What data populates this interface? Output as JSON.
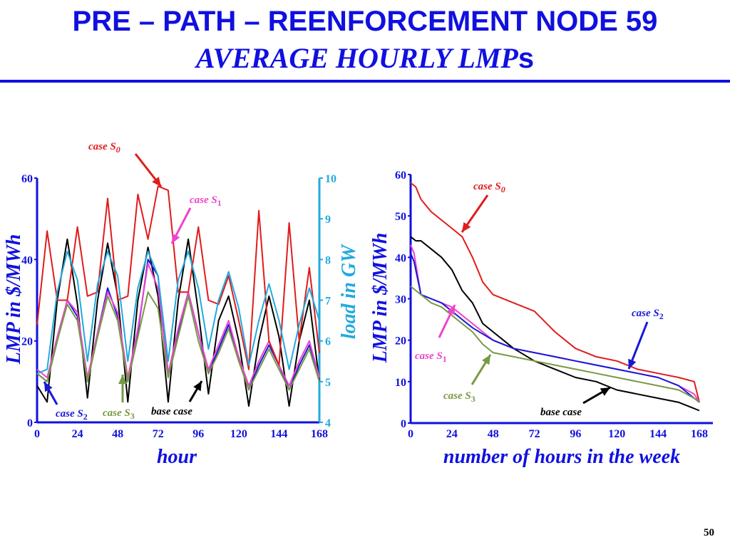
{
  "slide": {
    "title_line1": "PRE – PATH – REENFORCEMENT NODE 59",
    "title_line2_main": "AVERAGE HOURLY LMP",
    "title_line2_suffix": "s",
    "page_number": "50"
  },
  "colors": {
    "title": "#1010e0",
    "s0": "#e01c1c",
    "s1": "#ee44cc",
    "s2": "#1818d8",
    "s3": "#779944",
    "base": "#000000",
    "load": "#22aadd",
    "axis": "#1010e0"
  },
  "chart_data": [
    {
      "type": "line",
      "title": "",
      "xlabel": "hour",
      "ylabel": "LMP in $/MWh",
      "y2label": "load in GW",
      "xlim": [
        0,
        168
      ],
      "ylim": [
        0,
        60
      ],
      "y2lim": [
        4,
        10
      ],
      "xticks": [
        "0",
        "24",
        "48",
        "72",
        "96",
        "120",
        "144",
        "168"
      ],
      "yticks": [
        "0",
        "20",
        "40",
        "60"
      ],
      "y2ticks": [
        "4",
        "5",
        "6",
        "7",
        "8",
        "9",
        "10"
      ],
      "series": [
        {
          "name": "base case",
          "color_key": "base",
          "x": [
            0,
            6,
            12,
            18,
            24,
            30,
            36,
            42,
            48,
            54,
            60,
            66,
            72,
            78,
            84,
            90,
            96,
            102,
            108,
            114,
            120,
            126,
            132,
            138,
            144,
            150,
            156,
            162,
            168
          ],
          "values": [
            9,
            5,
            30,
            45,
            29,
            6,
            30,
            44,
            31,
            5,
            30,
            43,
            31,
            5,
            30,
            45,
            27,
            7,
            25,
            31,
            20,
            4,
            20,
            31,
            21,
            4,
            20,
            30,
            10
          ]
        },
        {
          "name": "case S2",
          "color_key": "s2",
          "x": [
            0,
            6,
            12,
            18,
            24,
            30,
            36,
            42,
            48,
            54,
            60,
            66,
            72,
            78,
            84,
            90,
            96,
            102,
            108,
            114,
            120,
            126,
            132,
            138,
            144,
            150,
            156,
            162,
            168
          ],
          "values": [
            12,
            10,
            20,
            30,
            26,
            10,
            22,
            33,
            26,
            10,
            22,
            40,
            36,
            12,
            22,
            32,
            22,
            12,
            18,
            24,
            16,
            8,
            14,
            19,
            14,
            8,
            14,
            19,
            11
          ]
        },
        {
          "name": "case S1",
          "color_key": "s1",
          "x": [
            0,
            6,
            12,
            18,
            24,
            30,
            36,
            42,
            48,
            54,
            60,
            66,
            72,
            78,
            84,
            90,
            96,
            102,
            108,
            114,
            120,
            126,
            132,
            138,
            144,
            150,
            156,
            162,
            168
          ],
          "values": [
            13,
            11,
            21,
            30,
            27,
            11,
            22,
            32,
            27,
            11,
            23,
            39,
            33,
            12,
            23,
            32,
            22,
            13,
            19,
            25,
            16,
            9,
            15,
            20,
            14,
            9,
            15,
            20,
            11
          ]
        },
        {
          "name": "case S3",
          "color_key": "s3",
          "x": [
            0,
            6,
            12,
            18,
            24,
            30,
            36,
            42,
            48,
            54,
            60,
            66,
            72,
            78,
            84,
            90,
            96,
            102,
            108,
            114,
            120,
            126,
            132,
            138,
            144,
            150,
            156,
            162,
            168
          ],
          "values": [
            12,
            10,
            20,
            29,
            25,
            10,
            21,
            31,
            25,
            10,
            21,
            32,
            28,
            11,
            21,
            31,
            20,
            12,
            17,
            23,
            15,
            8,
            13,
            18,
            13,
            8,
            13,
            18,
            10
          ]
        },
        {
          "name": "case S0",
          "color_key": "s0",
          "x": [
            0,
            6,
            12,
            18,
            24,
            30,
            36,
            42,
            48,
            54,
            60,
            66,
            72,
            78,
            84,
            90,
            96,
            102,
            108,
            114,
            120,
            126,
            132,
            138,
            144,
            150,
            156,
            162,
            168
          ],
          "values": [
            24,
            47,
            30,
            30,
            48,
            31,
            32,
            55,
            30,
            31,
            56,
            45,
            58,
            57,
            32,
            32,
            48,
            30,
            29,
            36,
            25,
            13,
            52,
            20,
            14,
            49,
            20,
            38,
            17
          ]
        },
        {
          "name": "load",
          "color_key": "load",
          "axis": "right",
          "x": [
            0,
            6,
            12,
            18,
            24,
            30,
            36,
            42,
            48,
            54,
            60,
            66,
            72,
            78,
            84,
            90,
            96,
            102,
            108,
            114,
            120,
            126,
            132,
            138,
            144,
            150,
            156,
            162,
            168
          ],
          "values": [
            5.2,
            5.3,
            7.2,
            8.2,
            7.5,
            5.5,
            7.4,
            8.2,
            7.6,
            5.5,
            7.3,
            8.2,
            7.6,
            5.5,
            7.5,
            8.2,
            7.3,
            5.8,
            7.0,
            7.7,
            6.8,
            5.4,
            6.5,
            7.4,
            6.5,
            5.3,
            6.4,
            7.3,
            6.5
          ]
        }
      ],
      "annotations": [
        {
          "text": "case S",
          "sub": "0",
          "color_key": "s0",
          "sub_italic": true
        },
        {
          "text": "case S",
          "sub": "1",
          "color_key": "s1",
          "sub_italic": false
        },
        {
          "text": "case S",
          "sub": "2",
          "color_key": "s2",
          "sub_italic": false
        },
        {
          "text": "case S",
          "sub": "3",
          "color_key": "s3",
          "sub_italic": false
        },
        {
          "text": "base case",
          "sub": "",
          "color_key": "base",
          "sub_italic": false
        }
      ]
    },
    {
      "type": "line",
      "title": "",
      "xlabel": "number of hours in the week",
      "ylabel": "LMP in $/MWh",
      "xlim": [
        0,
        168
      ],
      "ylim": [
        0,
        60
      ],
      "xticks": [
        "0",
        "24",
        "48",
        "72",
        "96",
        "120",
        "144",
        "168"
      ],
      "yticks": [
        "0",
        "10",
        "20",
        "30",
        "40",
        "50",
        "60"
      ],
      "series": [
        {
          "name": "case S0",
          "color_key": "s0",
          "x": [
            0,
            3,
            6,
            12,
            18,
            24,
            30,
            36,
            42,
            48,
            60,
            72,
            84,
            96,
            108,
            120,
            132,
            144,
            156,
            165,
            168
          ],
          "values": [
            58,
            57,
            54,
            51,
            49,
            47,
            45,
            40,
            34,
            31,
            29,
            27,
            22,
            18,
            16,
            15,
            13,
            12,
            11,
            10,
            5
          ]
        },
        {
          "name": "base case",
          "color_key": "base",
          "x": [
            0,
            3,
            6,
            12,
            18,
            24,
            30,
            36,
            42,
            48,
            54,
            60,
            72,
            84,
            96,
            108,
            120,
            132,
            144,
            156,
            165,
            168
          ],
          "values": [
            45,
            44,
            44,
            42,
            40,
            37,
            32,
            29,
            24,
            22,
            20,
            18,
            15,
            13,
            11,
            10,
            8,
            7,
            6,
            5,
            3.5,
            3
          ]
        },
        {
          "name": "case S1",
          "color_key": "s1",
          "x": [
            0,
            2,
            4,
            6,
            12,
            18,
            24,
            30,
            36,
            48,
            60,
            72,
            84,
            96,
            108,
            120,
            132,
            144,
            156,
            165,
            168
          ],
          "values": [
            43,
            41,
            36,
            31,
            30,
            29,
            28,
            26,
            24,
            20,
            18,
            17,
            16,
            15,
            14,
            13,
            12,
            11,
            9,
            7,
            5
          ]
        },
        {
          "name": "case S2",
          "color_key": "s2",
          "x": [
            0,
            2,
            4,
            6,
            12,
            18,
            24,
            30,
            36,
            48,
            60,
            72,
            84,
            96,
            108,
            120,
            132,
            144,
            156,
            165,
            168
          ],
          "values": [
            41,
            39,
            35,
            31,
            30,
            29,
            27,
            25,
            23,
            20,
            18,
            17,
            16,
            15,
            14,
            13,
            12,
            11,
            9,
            6,
            5
          ]
        },
        {
          "name": "case S3",
          "color_key": "s3",
          "x": [
            0,
            3,
            6,
            12,
            18,
            24,
            30,
            36,
            42,
            48,
            60,
            72,
            84,
            96,
            108,
            120,
            132,
            144,
            156,
            165,
            168
          ],
          "values": [
            33,
            32,
            31,
            29,
            28,
            26,
            24,
            22,
            19,
            17,
            16,
            15,
            14,
            13,
            12,
            11,
            10,
            9,
            8,
            6,
            5
          ]
        }
      ],
      "annotations": [
        {
          "text": "case S",
          "sub": "0",
          "color_key": "s0",
          "sub_italic": true
        },
        {
          "text": "case S",
          "sub": "2",
          "color_key": "s2",
          "sub_italic": false
        },
        {
          "text": "case S",
          "sub": "1",
          "color_key": "s1",
          "sub_italic": false
        },
        {
          "text": "case S",
          "sub": "3",
          "color_key": "s3",
          "sub_italic": false
        },
        {
          "text": "base case",
          "sub": "",
          "color_key": "base",
          "sub_italic": false
        }
      ]
    }
  ]
}
